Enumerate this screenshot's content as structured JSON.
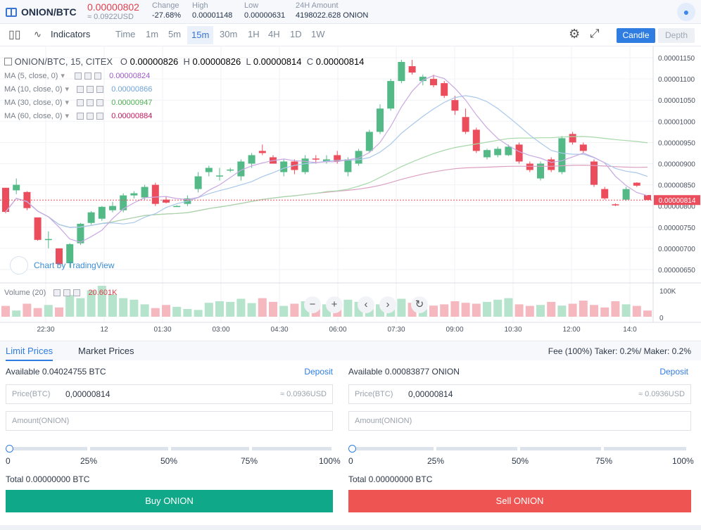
{
  "header": {
    "pair": "ONION/BTC",
    "last_price": "0.00000802",
    "last_price_usd": "≈ 0.0922USD",
    "change_label": "Change",
    "change_value": "-27.68%",
    "high_label": "High",
    "high_value": "0.00001148",
    "low_label": "Low",
    "low_value": "0.00000631",
    "amount_label": "24H Amount",
    "amount_value": "4198022.628 ONION"
  },
  "toolbar": {
    "indicators_label": "Indicators",
    "intervals": [
      "Time",
      "1m",
      "5m",
      "15m",
      "30m",
      "1H",
      "4H",
      "1D",
      "1W"
    ],
    "active_interval": "15m",
    "candle_label": "Candle",
    "depth_label": "Depth"
  },
  "chart": {
    "symbol_line": "ONION/BTC, 15, CITEX",
    "o": "0.00000826",
    "h": "0.00000826",
    "l": "0.00000814",
    "c": "0.00000814",
    "ma": [
      {
        "label": "MA (5, close, 0)",
        "value": "0.00000824",
        "color": "#9b59c8"
      },
      {
        "label": "MA (10, close, 0)",
        "value": "0.00000866",
        "color": "#6fa3d8"
      },
      {
        "label": "MA (30, close, 0)",
        "value": "0.00000947",
        "color": "#4caf50"
      },
      {
        "label": "MA (60, close, 0)",
        "value": "0.00000884",
        "color": "#c2185b"
      }
    ],
    "volume_label": "Volume (20)",
    "volume_value": "20.601K",
    "tv_label": "Chart by TradingView",
    "price_tag": "0.00000814",
    "volume_axis": [
      "100K",
      "0"
    ]
  },
  "chart_data": {
    "type": "candlestick",
    "y_ticks": [
      "0.00001150",
      "0.00001100",
      "0.00001050",
      "0.00001000",
      "0.00000950",
      "0.00000900",
      "0.00000850",
      "0.00000800",
      "0.00000750",
      "0.00000700",
      "0.00000650"
    ],
    "x_ticks": [
      "22:30",
      "12",
      "01:30",
      "03:00",
      "04:30",
      "06:00",
      "07:30",
      "09:00",
      "10:30",
      "12:00",
      "14:0"
    ],
    "ylim": [
      6.2e-06,
      1.16e-05
    ],
    "candles": [
      [
        8.43e-06,
        8.43e-06,
        7.83e-06,
        7.86e-06
      ],
      [
        8.37e-06,
        8.65e-06,
        8.28e-06,
        8.5e-06
      ],
      [
        8.33e-06,
        8.35e-06,
        7.9e-06,
        7.95e-06
      ],
      [
        7.73e-06,
        7.73e-06,
        7.18e-06,
        7.2e-06
      ],
      [
        7.21e-06,
        7.4e-06,
        7e-06,
        7.22e-06
      ],
      [
        7e-06,
        7e-06,
        6.6e-06,
        6.63e-06
      ],
      [
        6.65e-06,
        7.12e-06,
        6.55e-06,
        7.1e-06
      ],
      [
        7.12e-06,
        7.6e-06,
        7.08e-06,
        7.58e-06
      ],
      [
        7.6e-06,
        7.88e-06,
        7.56e-06,
        7.85e-06
      ],
      [
        7.7e-06,
        8e-06,
        7.65e-06,
        7.98e-06
      ],
      [
        7.9e-06,
        8.1e-06,
        7.85e-06,
        8e-06
      ],
      [
        7.9e-06,
        8.3e-06,
        7.85e-06,
        8.25e-06
      ],
      [
        8.25e-06,
        8.35e-06,
        8.18e-06,
        8.3e-06
      ],
      [
        8.2e-06,
        8.5e-06,
        8.15e-06,
        8.45e-06
      ],
      [
        8.5e-06,
        8.55e-06,
        8e-06,
        8.05e-06
      ],
      [
        8.15e-06,
        8.22e-06,
        8.06e-06,
        8.08e-06
      ],
      [
        8e-06,
        8.02e-06,
        7.98e-06,
        8e-06
      ],
      [
        8.05e-06,
        8.25e-06,
        8e-06,
        8.18e-06
      ],
      [
        8.4e-06,
        8.8e-06,
        8.32e-06,
        8.7e-06
      ],
      [
        8.8e-06,
        8.95e-06,
        8.7e-06,
        8.9e-06
      ],
      [
        8.7e-06,
        8.9e-06,
        8.6e-06,
        8.72e-06
      ],
      [
        8.85e-06,
        8.9e-06,
        8.8e-06,
        8.86e-06
      ],
      [
        8.7e-06,
        9.1e-06,
        8.6e-06,
        9.05e-06
      ],
      [
        9e-06,
        9.25e-06,
        8.9e-06,
        9.2e-06
      ],
      [
        9.3e-06,
        9.45e-06,
        9.2e-06,
        9.25e-06
      ],
      [
        9.15e-06,
        9.2e-06,
        9e-06,
        9e-06
      ],
      [
        8.8e-06,
        9.1e-06,
        8.7e-06,
        9.05e-06
      ],
      [
        9.05e-06,
        9.1e-06,
        8.75e-06,
        8.85e-06
      ],
      [
        8.8e-06,
        9.2e-06,
        8.75e-06,
        9.12e-06
      ],
      [
        9.12e-06,
        9.2e-06,
        9e-06,
        9.1e-06
      ],
      [
        9.05e-06,
        9.2e-06,
        9e-06,
        9.1e-06
      ],
      [
        9.2e-06,
        9.3e-06,
        9e-06,
        9.05e-06
      ],
      [
        8.8e-06,
        9.15e-06,
        8.7e-06,
        9.1e-06
      ],
      [
        9e-06,
        9.35e-06,
        8.95e-06,
        9.3e-06
      ],
      [
        9.3e-06,
        9.8e-06,
        9.25e-06,
        9.75e-06
      ],
      [
        9.75e-06,
        1.04e-05,
        9.7e-06,
        1.03e-05
      ],
      [
        1.03e-05,
        1.1e-05,
        1.025e-05,
        1.095e-05
      ],
      [
        1.095e-05,
        1.145e-05,
        1.09e-05,
        1.14e-05
      ],
      [
        1.13e-05,
        1.145e-05,
        1.11e-05,
        1.115e-05
      ],
      [
        1.095e-05,
        1.11e-05,
        1.085e-05,
        1.105e-05
      ],
      [
        1.1e-05,
        1.11e-05,
        1.08e-05,
        1.085e-05
      ],
      [
        1.09e-05,
        1.095e-05,
        1.055e-05,
        1.06e-05
      ],
      [
        1.05e-05,
        1.06e-05,
        1.015e-05,
        1.025e-05
      ],
      [
        1.01e-05,
        1.03e-05,
        9.7e-06,
        9.75e-06
      ],
      [
        9.8e-06,
        9.85e-06,
        9.25e-06,
        9.3e-06
      ],
      [
        9.15e-06,
        9.35e-06,
        9.1e-06,
        9.32e-06
      ],
      [
        9.2e-06,
        9.4e-06,
        9.15e-06,
        9.35e-06
      ],
      [
        9.2e-06,
        9.45e-06,
        9.18e-06,
        9.4e-06
      ],
      [
        9.45e-06,
        9.5e-06,
        9e-06,
        9.05e-06
      ],
      [
        9e-06,
        9.05e-06,
        8.8e-06,
        8.85e-06
      ],
      [
        8.65e-06,
        9.05e-06,
        8.6e-06,
        9e-06
      ],
      [
        9.1e-06,
        9.15e-06,
        8.8e-06,
        8.85e-06
      ],
      [
        8.8e-06,
        9.65e-06,
        8.75e-06,
        9.6e-06
      ],
      [
        9.7e-06,
        9.75e-06,
        9.45e-06,
        9.5e-06
      ],
      [
        9.45e-06,
        9.5e-06,
        9.25e-06,
        9.3e-06
      ],
      [
        9.05e-06,
        9.1e-06,
        8.45e-06,
        8.5e-06
      ],
      [
        8.4e-06,
        8.45e-06,
        8.15e-06,
        8.18e-06
      ],
      [
        8.04e-06,
        8.06e-06,
        8e-06,
        8.03e-06
      ],
      [
        8.15e-06,
        8.45e-06,
        8.12e-06,
        8.4e-06
      ],
      [
        8.55e-06,
        8.56e-06,
        8.45e-06,
        8.48e-06
      ],
      [
        8.26e-06,
        8.26e-06,
        8.14e-06,
        8.14e-06
      ]
    ],
    "volume": [
      35,
      20,
      42,
      28,
      38,
      30,
      70,
      60,
      85,
      100,
      72,
      60,
      55,
      40,
      28,
      38,
      32,
      25,
      22,
      45,
      50,
      48,
      58,
      44,
      60,
      48,
      35,
      42,
      50,
      38,
      40,
      45,
      55,
      48,
      45,
      40,
      38,
      58,
      45,
      32,
      36,
      40,
      50,
      45,
      42,
      48,
      55,
      60,
      40,
      35,
      38,
      48,
      36,
      42,
      52,
      38,
      30,
      50,
      40,
      35,
      20
    ],
    "volume_colors": "up-green/down-red",
    "ma_colors": {
      "ma5": "#c9a8e2",
      "ma10": "#a9c8ea",
      "ma30": "#a6d8a8",
      "ma60": "#dca0c0"
    },
    "grid": true
  },
  "order": {
    "tab_limit": "Limit Prices",
    "tab_market": "Market Prices",
    "fee_text": "Fee (100%) Taker: 0.2%/ Maker: 0.2%",
    "buy": {
      "available": "Available 0.04024755 BTC",
      "deposit": "Deposit",
      "price_label": "Price(BTC)",
      "price_value": "0,00000814",
      "price_usd": "≈ 0.0936USD",
      "amount_label": "Amount(ONION)",
      "pcts": [
        "0",
        "25%",
        "50%",
        "75%",
        "100%"
      ],
      "total": "Total 0.00000000 BTC",
      "button": "Buy ONION"
    },
    "sell": {
      "available": "Available 0.00083877 ONION",
      "deposit": "Deposit",
      "price_label": "Price(BTC)",
      "price_value": "0,00000814",
      "price_usd": "≈ 0.0936USD",
      "amount_label": "Amount(ONION)",
      "pcts": [
        "0",
        "25%",
        "50%",
        "75%",
        "100%"
      ],
      "total": "Total 0.00000000 BTC",
      "button": "Sell ONION"
    }
  }
}
